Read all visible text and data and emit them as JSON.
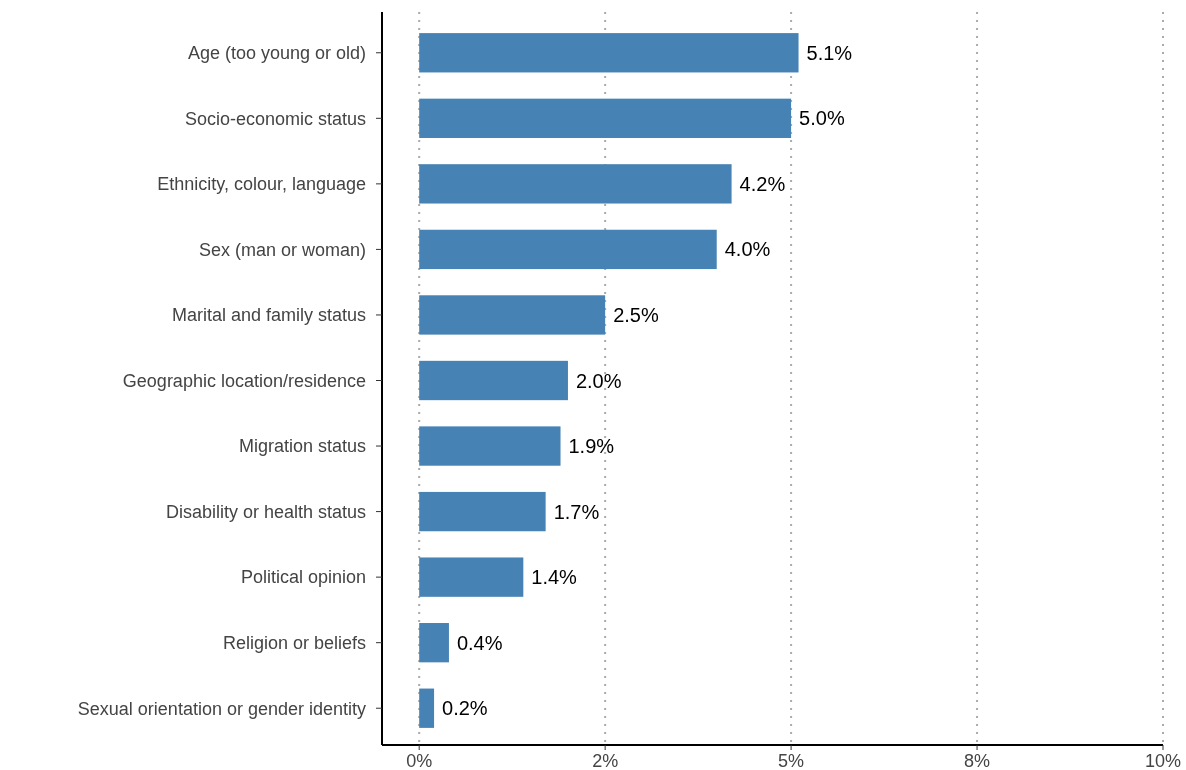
{
  "chart_data": {
    "type": "bar",
    "orientation": "horizontal",
    "categories": [
      "Age (too young or old)",
      "Socio-economic status",
      "Ethnicity, colour, language",
      "Sex (man or woman)",
      "Marital and family status",
      "Geographic location/residence",
      "Migration status",
      "Disability or health status",
      "Political opinion",
      "Religion or beliefs",
      "Sexual orientation or gender identity"
    ],
    "values": [
      5.1,
      5.0,
      4.2,
      4.0,
      2.5,
      2.0,
      1.9,
      1.7,
      1.4,
      0.4,
      0.2
    ],
    "value_labels": [
      "5.1%",
      "5.0%",
      "4.2%",
      "4.0%",
      "2.5%",
      "2.0%",
      "1.9%",
      "1.7%",
      "1.4%",
      "0.4%",
      "0.2%"
    ],
    "color": "#4682b4",
    "xlim": [
      -0.5,
      10
    ],
    "xticks": [
      {
        "value": 0,
        "label": "0%"
      },
      {
        "value": 2.5,
        "label": "2%"
      },
      {
        "value": 5,
        "label": "5%"
      },
      {
        "value": 7.5,
        "label": "8%"
      },
      {
        "value": 10,
        "label": "10%"
      }
    ],
    "grid": "x"
  }
}
